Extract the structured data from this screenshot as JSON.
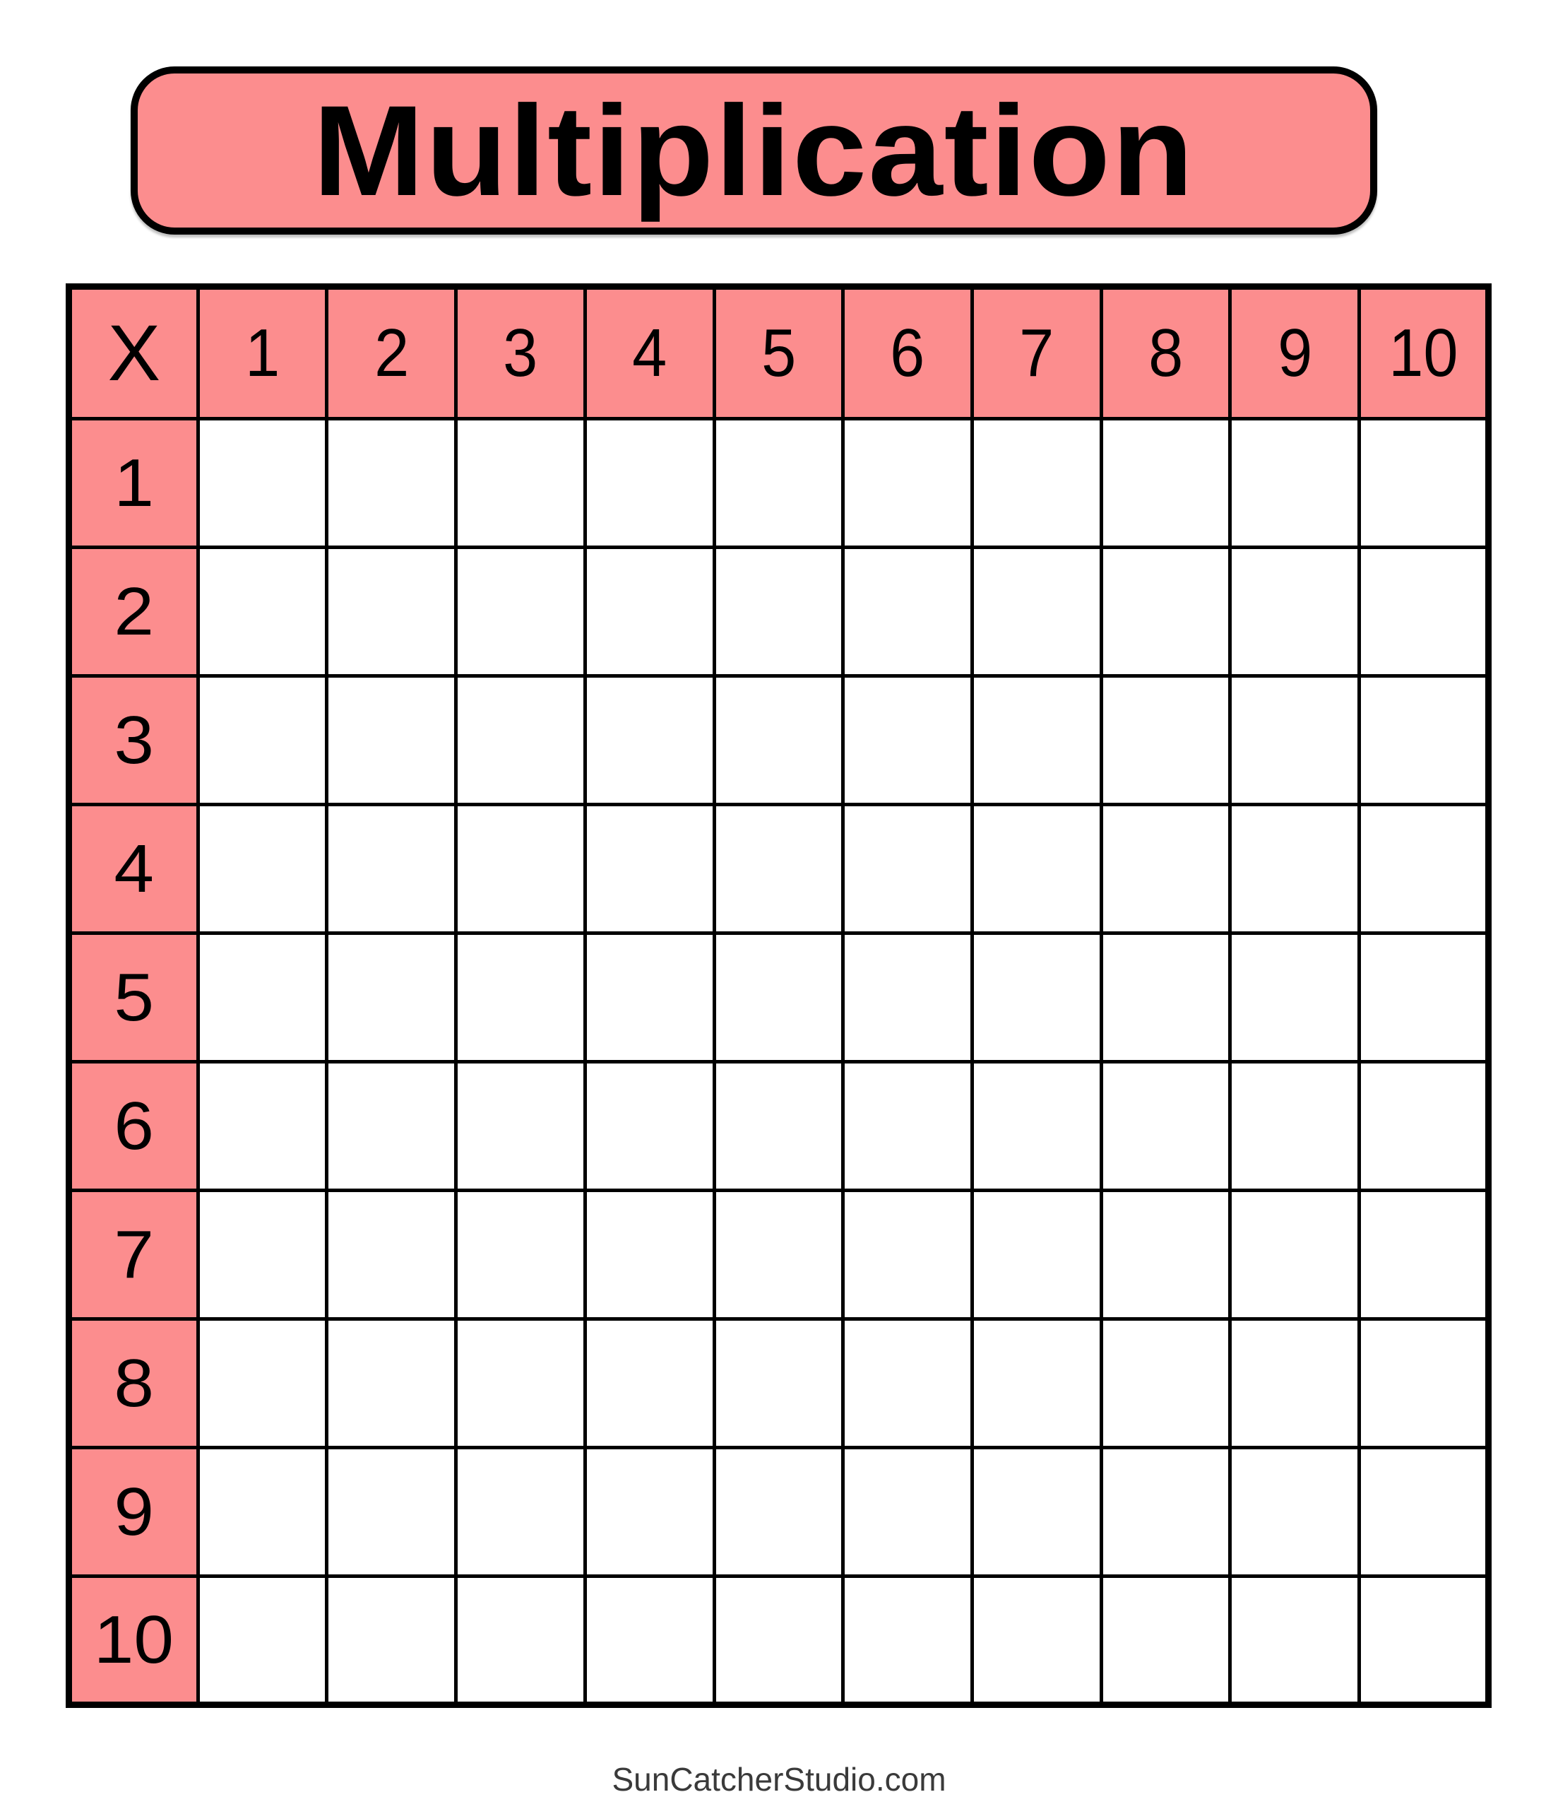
{
  "title": "Multiplication",
  "footer_credit": "SunCatcherStudio.com",
  "colors": {
    "header_fill": "#FC8D8E",
    "grid_line": "#000000",
    "title_text": "#000000",
    "footer_text": "#3A3A3A",
    "page_background": "#FFFFFF"
  },
  "grid": {
    "corner_label": "X",
    "column_headers": [
      "1",
      "2",
      "3",
      "4",
      "5",
      "6",
      "7",
      "8",
      "9",
      "10"
    ],
    "row_headers": [
      "1",
      "2",
      "3",
      "4",
      "5",
      "6",
      "7",
      "8",
      "9",
      "10"
    ],
    "body_cell_value": ""
  }
}
